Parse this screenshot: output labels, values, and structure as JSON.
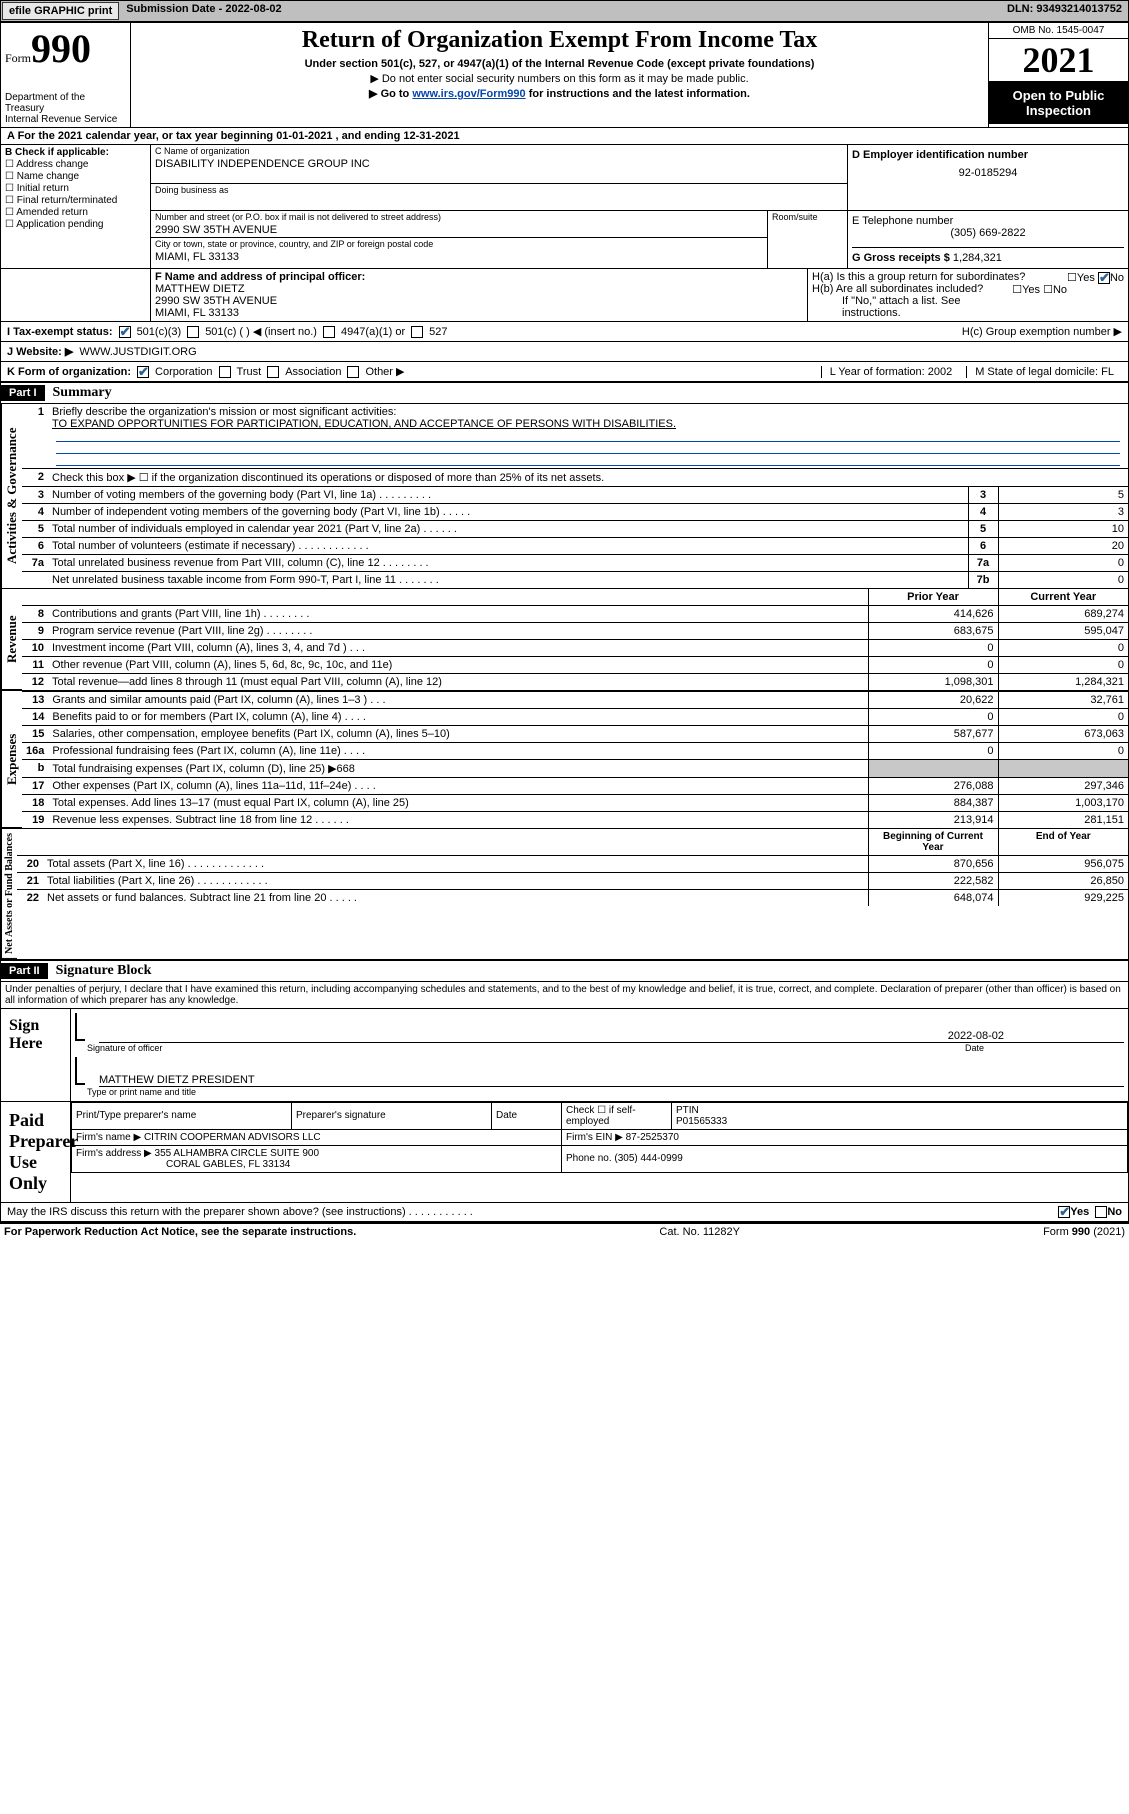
{
  "header": {
    "efile": "efile GRAPHIC print",
    "submission_label": "Submission Date - ",
    "submission_date": "2022-08-02",
    "dln_label": "DLN: ",
    "dln": "93493214013752"
  },
  "form_top": {
    "form_word": "Form",
    "form_num": "990",
    "dept": "Department of the Treasury",
    "irs": "Internal Revenue Service",
    "title": "Return of Organization Exempt From Income Tax",
    "subtitle": "Under section 501(c), 527, or 4947(a)(1) of the Internal Revenue Code (except private foundations)",
    "note1": "▶ Do not enter social security numbers on this form as it may be made public.",
    "note2_pre": "▶ Go to ",
    "note2_link": "www.irs.gov/Form990",
    "note2_post": " for instructions and the latest information.",
    "omb": "OMB No. 1545-0047",
    "year": "2021",
    "inspection": "Open to Public Inspection"
  },
  "rowA": "A For the 2021 calendar year, or tax year beginning 01-01-2021    , and ending 12-31-2021",
  "boxB": {
    "label": "B Check if applicable:",
    "items": [
      "Address change",
      "Name change",
      "Initial return",
      "Final return/terminated",
      "Amended return",
      "Application pending"
    ]
  },
  "boxC": {
    "name_label": "C Name of organization",
    "name": "DISABILITY INDEPENDENCE GROUP INC",
    "dba_label": "Doing business as",
    "dba": "",
    "street_label": "Number and street (or P.O. box if mail is not delivered to street address)",
    "room_label": "Room/suite",
    "street": "2990 SW 35TH AVENUE",
    "city_label": "City or town, state or province, country, and ZIP or foreign postal code",
    "city": "MIAMI, FL  33133"
  },
  "boxD": {
    "label": "D Employer identification number",
    "value": "92-0185294"
  },
  "boxE": {
    "label": "E Telephone number",
    "value": "(305) 669-2822"
  },
  "boxG": {
    "label": "G Gross receipts $ ",
    "value": "1,284,321"
  },
  "boxF": {
    "label": "F Name and address of principal officer:",
    "name": "MATTHEW DIETZ",
    "street": "2990 SW 35TH AVENUE",
    "city": "MIAMI, FL  33133"
  },
  "boxH": {
    "a": "H(a)  Is this a group return for subordinates?",
    "a_yes": "Yes",
    "a_no": "No",
    "b": "H(b)  Are all subordinates included?",
    "b_yes": "Yes",
    "b_no": "No",
    "b_note": "If \"No,\" attach a list. See instructions.",
    "c": "H(c)  Group exemption number ▶"
  },
  "rowI": {
    "label": "I   Tax-exempt status:",
    "opt1": "501(c)(3)",
    "opt2": "501(c) (   ) ◀ (insert no.)",
    "opt3": "4947(a)(1) or",
    "opt4": "527"
  },
  "rowJ": {
    "label": "J   Website: ▶",
    "value": " WWW.JUSTDIGIT.ORG"
  },
  "rowK": {
    "label": "K Form of organization:",
    "opts": [
      "Corporation",
      "Trust",
      "Association",
      "Other ▶"
    ],
    "L": "L Year of formation: 2002",
    "M": "M State of legal domicile: FL"
  },
  "partI": {
    "header": "Part I",
    "title": "Summary"
  },
  "summary": {
    "line1": "Briefly describe the organization's mission or most significant activities:",
    "mission": "TO EXPAND OPPORTUNITIES FOR PARTICIPATION, EDUCATION, AND ACCEPTANCE OF PERSONS WITH DISABILITIES.",
    "line2": "Check this box ▶ ☐  if the organization discontinued its operations or disposed of more than 25% of its net assets.",
    "lines_single": [
      {
        "n": "3",
        "t": "Number of voting members of the governing body (Part VI, line 1a)   .    .    .    .    .    .    .    .    .",
        "box": "3",
        "v": "5"
      },
      {
        "n": "4",
        "t": "Number of independent voting members of the governing body (Part VI, line 1b)   .    .    .    .    .",
        "box": "4",
        "v": "3"
      },
      {
        "n": "5",
        "t": "Total number of individuals employed in calendar year 2021 (Part V, line 2a)   .    .    .    .    .    .",
        "box": "5",
        "v": "10"
      },
      {
        "n": "6",
        "t": "Total number of volunteers (estimate if necessary)   .    .    .    .    .    .    .    .    .    .    .    .",
        "box": "6",
        "v": "20"
      },
      {
        "n": "7a",
        "t": "Total unrelated business revenue from Part VIII, column (C), line 12   .    .    .    .    .    .    .    .",
        "box": "7a",
        "v": "0"
      },
      {
        "n": "",
        "t": "Net unrelated business taxable income from Form 990-T, Part I, line 11   .    .    .    .    .    .    .",
        "box": "7b",
        "v": "0"
      }
    ],
    "col_headers": {
      "prior": "Prior Year",
      "current": "Current Year",
      "beg": "Beginning of Current Year",
      "end": "End of Year"
    },
    "revenue": [
      {
        "n": "8",
        "t": "Contributions and grants (Part VIII, line 1h)   .    .    .    .    .    .    .    .",
        "p": "414,626",
        "c": "689,274"
      },
      {
        "n": "9",
        "t": "Program service revenue (Part VIII, line 2g)   .    .    .    .    .    .    .    .",
        "p": "683,675",
        "c": "595,047"
      },
      {
        "n": "10",
        "t": "Investment income (Part VIII, column (A), lines 3, 4, and 7d )   .    .    .",
        "p": "0",
        "c": "0"
      },
      {
        "n": "11",
        "t": "Other revenue (Part VIII, column (A), lines 5, 6d, 8c, 9c, 10c, and 11e)",
        "p": "0",
        "c": "0"
      },
      {
        "n": "12",
        "t": "Total revenue—add lines 8 through 11 (must equal Part VIII, column (A), line 12)",
        "p": "1,098,301",
        "c": "1,284,321"
      }
    ],
    "expenses": [
      {
        "n": "13",
        "t": "Grants and similar amounts paid (Part IX, column (A), lines 1–3 )   .    .    .",
        "p": "20,622",
        "c": "32,761"
      },
      {
        "n": "14",
        "t": "Benefits paid to or for members (Part IX, column (A), line 4)   .    .    .    .",
        "p": "0",
        "c": "0"
      },
      {
        "n": "15",
        "t": "Salaries, other compensation, employee benefits (Part IX, column (A), lines 5–10)",
        "p": "587,677",
        "c": "673,063"
      },
      {
        "n": "16a",
        "t": "Professional fundraising fees (Part IX, column (A), line 11e)   .    .    .    .",
        "p": "0",
        "c": "0"
      },
      {
        "n": "b",
        "t": "Total fundraising expenses (Part IX, column (D), line 25) ▶668",
        "p": "",
        "c": "",
        "shade": true
      },
      {
        "n": "17",
        "t": "Other expenses (Part IX, column (A), lines 11a–11d, 11f–24e)   .    .    .    .",
        "p": "276,088",
        "c": "297,346"
      },
      {
        "n": "18",
        "t": "Total expenses. Add lines 13–17 (must equal Part IX, column (A), line 25)",
        "p": "884,387",
        "c": "1,003,170"
      },
      {
        "n": "19",
        "t": "Revenue less expenses. Subtract line 18 from line 12   .    .    .    .    .    .",
        "p": "213,914",
        "c": "281,151"
      }
    ],
    "netassets": [
      {
        "n": "20",
        "t": "Total assets (Part X, line 16)   .    .    .    .    .    .    .    .    .    .    .    .    .",
        "p": "870,656",
        "c": "956,075"
      },
      {
        "n": "21",
        "t": "Total liabilities (Part X, line 26)   .    .    .    .    .    .    .    .    .    .    .    .",
        "p": "222,582",
        "c": "26,850"
      },
      {
        "n": "22",
        "t": "Net assets or fund balances. Subtract line 21 from line 20   .    .    .    .    .",
        "p": "648,074",
        "c": "929,225"
      }
    ],
    "tabs": {
      "gov": "Activities & Governance",
      "rev": "Revenue",
      "exp": "Expenses",
      "net": "Net Assets or Fund Balances"
    }
  },
  "partII": {
    "header": "Part II",
    "title": "Signature Block"
  },
  "penalty": "Under penalties of perjury, I declare that I have examined this return, including accompanying schedules and statements, and to the best of my knowledge and belief, it is true, correct, and complete. Declaration of preparer (other than officer) is based on all information of which preparer has any knowledge.",
  "sign": {
    "here": "Sign Here",
    "sig_officer": "Signature of officer",
    "date_lbl": "Date",
    "date": "2022-08-02",
    "name": "MATTHEW DIETZ  PRESIDENT",
    "name_lbl": "Type or print name and title"
  },
  "preparer": {
    "title": "Paid Preparer Use Only",
    "h1": "Print/Type preparer's name",
    "h2": "Preparer's signature",
    "h3": "Date",
    "h4_a": "Check ☐ if self-employed",
    "h4_b": "PTIN",
    "ptin": "P01565333",
    "firm_name_lbl": "Firm's name    ▶ ",
    "firm_name": "CITRIN COOPERMAN ADVISORS LLC",
    "firm_ein_lbl": "Firm's EIN ▶ ",
    "firm_ein": "87-2525370",
    "firm_addr_lbl": "Firm's address ▶ ",
    "firm_addr1": "355 ALHAMBRA CIRCLE SUITE 900",
    "firm_addr2": "CORAL GABLES, FL  33134",
    "phone_lbl": "Phone no. ",
    "phone": "(305) 444-0999"
  },
  "discuss": {
    "q": "May the IRS discuss this return with the preparer shown above? (see instructions)   .    .    .    .    .    .    .    .    .    .    .",
    "yes": "Yes",
    "no": "No"
  },
  "footer": {
    "left": "For Paperwork Reduction Act Notice, see the separate instructions.",
    "mid": "Cat. No. 11282Y",
    "right": "Form 990 (2021)"
  }
}
